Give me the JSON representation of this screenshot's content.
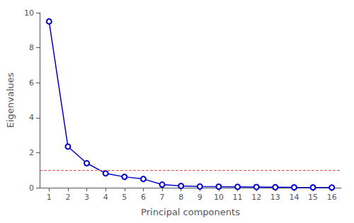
{
  "chart_data": {
    "type": "line",
    "xlabel": "Principal components",
    "ylabel": "Eigenvalues",
    "x": [
      1,
      2,
      3,
      4,
      5,
      6,
      7,
      8,
      9,
      10,
      11,
      12,
      13,
      14,
      15,
      16
    ],
    "values": [
      9.5,
      2.35,
      1.4,
      0.82,
      0.62,
      0.5,
      0.18,
      0.1,
      0.07,
      0.06,
      0.05,
      0.04,
      0.03,
      0.02,
      0.015,
      0.01
    ],
    "color": "#0000CC",
    "marker": "circle",
    "hline": {
      "y": 1.0,
      "color": "#E05050",
      "line_style": "dashed"
    },
    "xlim": [
      0.5,
      16.5
    ],
    "xticks": [
      1,
      2,
      3,
      4,
      5,
      6,
      7,
      8,
      9,
      10,
      11,
      12,
      13,
      14,
      15,
      16
    ],
    "ylim": [
      0,
      10
    ],
    "yticks": [
      0,
      2,
      4,
      6,
      8,
      10
    ],
    "grid": false
  }
}
